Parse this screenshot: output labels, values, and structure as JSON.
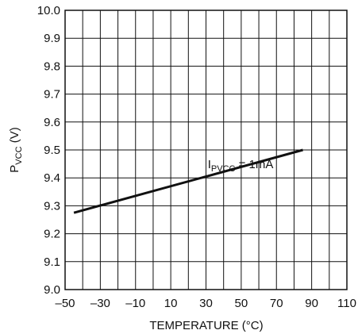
{
  "chart_data": {
    "type": "line",
    "xlabel": "TEMPERATURE (°C)",
    "ylabel_main": "P",
    "ylabel_sub": "VCC",
    "ylabel_suffix": " (V)",
    "xlim": [
      -50,
      110
    ],
    "ylim": [
      9.0,
      10.0
    ],
    "x_ticks": [
      -50,
      -30,
      -10,
      10,
      30,
      50,
      70,
      90,
      110
    ],
    "x_tick_labels": [
      "–50",
      "–30",
      "–10",
      "10",
      "30",
      "50",
      "70",
      "90",
      "110"
    ],
    "x_minor_step": 10,
    "y_ticks": [
      9.0,
      9.1,
      9.2,
      9.3,
      9.4,
      9.5,
      9.6,
      9.7,
      9.8,
      9.9,
      10.0
    ],
    "y_tick_labels": [
      "9.0",
      "9.1",
      "9.2",
      "9.3",
      "9.4",
      "9.5",
      "9.6",
      "9.7",
      "9.8",
      "9.9",
      "10.0"
    ],
    "grid": true,
    "series": [
      {
        "x": [
          -45,
          85
        ],
        "y": [
          9.275,
          9.5
        ]
      }
    ],
    "annotation": {
      "main": "I",
      "sub": "PVCC",
      "suffix": " = 1mA",
      "x": 31,
      "y": 9.435
    }
  },
  "colors": {
    "line": "#111111",
    "grid": "#111111",
    "background": "#ffffff"
  }
}
